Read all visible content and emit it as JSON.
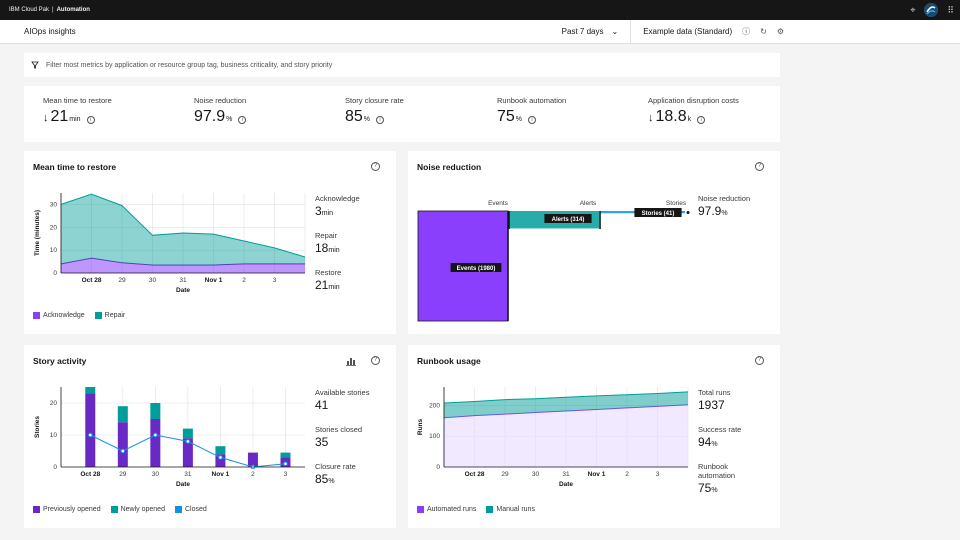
{
  "topbar": {
    "product": "IBM Cloud Pak",
    "separator": "|",
    "section": "Automation"
  },
  "subbar": {
    "title": "AIOps insights",
    "range": "Past 7 days",
    "dataset": "Example data (Standard)"
  },
  "filter": {
    "placeholder": "Filter most metrics by application or resource group tag, business criticality, and story priority"
  },
  "kpis": [
    {
      "label": "Mean time to restore",
      "arrow": "↓",
      "value": "21",
      "unit": "min"
    },
    {
      "label": "Noise reduction",
      "arrow": "",
      "value": "97.9",
      "unit": "%"
    },
    {
      "label": "Story closure rate",
      "arrow": "",
      "value": "85",
      "unit": "%"
    },
    {
      "label": "Runbook automation",
      "arrow": "",
      "value": "75",
      "unit": "%"
    },
    {
      "label": "Application disruption costs",
      "arrow": "↓",
      "value": "18.8",
      "unit": "k"
    }
  ],
  "colors": {
    "purple": "#8a3ffc",
    "purple_dark": "#6929c4",
    "teal": "#009d9a",
    "teal_light": "#7fd0c8",
    "blue": "#1192e8",
    "light_purple": "#e8daff"
  },
  "mttr": {
    "title": "Mean time to restore",
    "stats": [
      {
        "label": "Acknowledge",
        "value": "3",
        "unit": "min"
      },
      {
        "label": "Repair",
        "value": "18",
        "unit": "min"
      },
      {
        "label": "Restore",
        "value": "21",
        "unit": "min"
      }
    ],
    "legend": [
      "Acknowledge",
      "Repair"
    ]
  },
  "noise": {
    "title": "Noise reduction",
    "stat_label": "Noise reduction",
    "stat_value": "97.9",
    "stat_unit": "%"
  },
  "story": {
    "title": "Story activity",
    "stats": [
      {
        "label": "Available stories",
        "value": "41",
        "unit": ""
      },
      {
        "label": "Stories closed",
        "value": "35",
        "unit": ""
      },
      {
        "label": "Closure rate",
        "value": "85",
        "unit": "%"
      }
    ],
    "legend": [
      "Previously opened",
      "Newly opened",
      "Closed"
    ]
  },
  "runbook": {
    "title": "Runbook usage",
    "stats": [
      {
        "label": "Total runs",
        "value": "1937",
        "unit": ""
      },
      {
        "label": "Success rate",
        "value": "94",
        "unit": "%"
      },
      {
        "label": "Runbook automation",
        "value": "75",
        "unit": "%"
      }
    ],
    "legend": [
      "Automated runs",
      "Manual runs"
    ]
  },
  "chart_data": [
    {
      "type": "area",
      "title": "Mean time to restore",
      "xlabel": "Date",
      "ylabel": "Time (minutes)",
      "categories": [
        "",
        "Oct 28",
        "29",
        "30",
        "31",
        "Nov 1",
        "2",
        "3",
        ""
      ],
      "x_ticks": [
        "Oct 28",
        "29",
        "30",
        "31",
        "Nov 1",
        "2",
        "3"
      ],
      "y_ticks": [
        0,
        10,
        20,
        30
      ],
      "ylim": [
        0,
        35
      ],
      "stacked": true,
      "series": [
        {
          "name": "Acknowledge",
          "values": [
            4,
            6.5,
            4.5,
            3.5,
            3.5,
            3.5,
            4,
            4,
            4
          ]
        },
        {
          "name": "Repair",
          "values": [
            26,
            28,
            25,
            13,
            14,
            13.5,
            10,
            7,
            3
          ]
        }
      ]
    },
    {
      "type": "bar",
      "title": "Noise reduction",
      "categories": [
        "Events",
        "Alerts",
        "Stories"
      ],
      "values": [
        1980,
        314,
        41
      ],
      "data_labels": [
        "Events (1980)",
        "Alerts (314)",
        "Stories (41)"
      ]
    },
    {
      "type": "bar",
      "title": "Story activity",
      "xlabel": "Date",
      "ylabel": "Stories",
      "categories": [
        "Oct 28",
        "29",
        "30",
        "31",
        "Nov 1",
        "2",
        "3"
      ],
      "y_ticks": [
        0,
        10,
        20
      ],
      "ylim": [
        0,
        25
      ],
      "stacked": true,
      "series": [
        {
          "name": "Previously opened",
          "values": [
            23,
            14,
            15,
            9,
            4,
            4.5,
            3
          ]
        },
        {
          "name": "Newly opened",
          "values": [
            2,
            5,
            5,
            3,
            2.5,
            0,
            1.5
          ]
        }
      ],
      "line_series": {
        "name": "Closed",
        "values": [
          10,
          5,
          10,
          8,
          3,
          0,
          1
        ]
      }
    },
    {
      "type": "area",
      "title": "Runbook usage",
      "xlabel": "Date",
      "ylabel": "Runs",
      "categories": [
        "",
        "Oct 28",
        "29",
        "30",
        "31",
        "Nov 1",
        "2",
        "3",
        ""
      ],
      "x_ticks": [
        "Oct 28",
        "29",
        "30",
        "31",
        "Nov 1",
        "2",
        "3"
      ],
      "y_ticks": [
        0,
        100,
        200
      ],
      "ylim": [
        0,
        260
      ],
      "stacked": true,
      "series": [
        {
          "name": "Automated runs",
          "values": [
            160,
            167,
            172,
            177,
            182,
            187,
            192,
            197,
            202
          ]
        },
        {
          "name": "Manual runs",
          "values": [
            48,
            46,
            47,
            45,
            45,
            44,
            43,
            42,
            42
          ]
        }
      ]
    }
  ]
}
